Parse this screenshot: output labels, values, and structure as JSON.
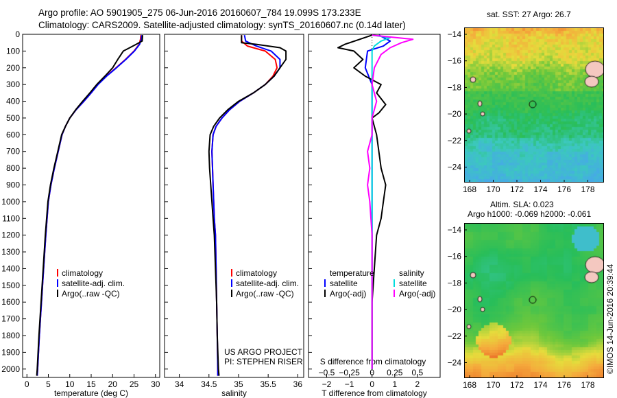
{
  "header": {
    "line1": "Argo profile: AO 5901905_275 06-Jun-2016 20160607_784 19.099S 173.233E",
    "line2": "Climatology: CARS2009. Satellite-adjusted climatology: synTS_20160607.nc (0.14d later)"
  },
  "colors": {
    "climatology": "#ff0000",
    "satellite": "#0000ff",
    "argo": "#000000",
    "sat_diff": "#00dddd",
    "argo_s_diff": "#ff00ff"
  },
  "chart_data": [
    {
      "type": "line",
      "name": "temperature",
      "xlabel": "temperature (deg C)",
      "ylabel": "",
      "xlim": [
        -1,
        31
      ],
      "ylim": [
        2050,
        0
      ],
      "y_inverted": true,
      "xticks": [
        0,
        5,
        10,
        15,
        20,
        25,
        30
      ],
      "yticks": [
        0,
        100,
        200,
        300,
        400,
        500,
        600,
        700,
        800,
        900,
        1000,
        1100,
        1200,
        1300,
        1400,
        1500,
        1600,
        1700,
        1800,
        1900,
        2000
      ],
      "legend": [
        "climatology",
        "satellite-adj. clim.",
        "Argo(..raw -QC)"
      ],
      "series": [
        {
          "name": "climatology",
          "color": "#ff0000",
          "points": [
            [
              26.6,
              5
            ],
            [
              26.5,
              30
            ],
            [
              26.2,
              60
            ],
            [
              25.0,
              100
            ],
            [
              23.0,
              150
            ],
            [
              20.8,
              200
            ],
            [
              18.5,
              250
            ],
            [
              16.5,
              300
            ],
            [
              15.0,
              350
            ],
            [
              13.3,
              400
            ],
            [
              11.5,
              450
            ],
            [
              10.0,
              500
            ],
            [
              9.0,
              550
            ],
            [
              8.2,
              600
            ],
            [
              7.3,
              700
            ],
            [
              6.4,
              800
            ],
            [
              5.6,
              900
            ],
            [
              5.0,
              1000
            ],
            [
              4.4,
              1200
            ],
            [
              3.9,
              1400
            ],
            [
              3.4,
              1600
            ],
            [
              2.9,
              1800
            ],
            [
              2.5,
              2000
            ],
            [
              2.4,
              2040
            ]
          ]
        },
        {
          "name": "satellite-adj. clim.",
          "color": "#0000ff",
          "points": [
            [
              26.8,
              5
            ],
            [
              26.7,
              30
            ],
            [
              26.3,
              60
            ],
            [
              25.1,
              100
            ],
            [
              23.1,
              150
            ],
            [
              20.9,
              200
            ],
            [
              18.6,
              250
            ],
            [
              16.6,
              300
            ],
            [
              15.0,
              350
            ],
            [
              13.3,
              400
            ],
            [
              11.5,
              450
            ],
            [
              10.0,
              500
            ],
            [
              9.0,
              550
            ],
            [
              8.2,
              600
            ],
            [
              7.3,
              700
            ],
            [
              6.4,
              800
            ],
            [
              5.6,
              900
            ],
            [
              5.0,
              1000
            ],
            [
              4.4,
              1200
            ],
            [
              3.9,
              1400
            ],
            [
              3.4,
              1600
            ],
            [
              2.9,
              1800
            ],
            [
              2.5,
              2000
            ],
            [
              2.4,
              2040
            ]
          ]
        },
        {
          "name": "Argo(..raw -QC)",
          "color": "#000000",
          "points": [
            [
              27.0,
              5
            ],
            [
              26.9,
              40
            ],
            [
              25.5,
              60
            ],
            [
              24.0,
              80
            ],
            [
              22.5,
              100
            ],
            [
              21.2,
              150
            ],
            [
              20.0,
              200
            ],
            [
              18.2,
              250
            ],
            [
              16.3,
              300
            ],
            [
              14.7,
              350
            ],
            [
              13.0,
              400
            ],
            [
              11.4,
              450
            ],
            [
              10.0,
              500
            ],
            [
              9.0,
              550
            ],
            [
              8.1,
              600
            ],
            [
              7.2,
              700
            ],
            [
              6.3,
              800
            ],
            [
              5.5,
              900
            ],
            [
              4.9,
              1000
            ],
            [
              4.3,
              1200
            ],
            [
              3.8,
              1400
            ],
            [
              3.3,
              1600
            ],
            [
              2.8,
              1800
            ],
            [
              2.4,
              2000
            ],
            [
              2.3,
              2040
            ]
          ]
        }
      ]
    },
    {
      "type": "line",
      "name": "salinity",
      "xlabel": "salinity",
      "ylabel": "",
      "xlim": [
        33.75,
        36.1
      ],
      "ylim": [
        2050,
        0
      ],
      "y_inverted": true,
      "xticks": [
        34,
        34.5,
        35,
        35.5,
        36
      ],
      "legend": [
        "climatology",
        "satellite-adj. clim.",
        "Argo(..raw -QC)"
      ],
      "annotation": [
        "US ARGO PROJECT",
        "PI: STEPHEN RISER"
      ],
      "series": [
        {
          "name": "climatology",
          "color": "#ff0000",
          "points": [
            [
              35.05,
              5
            ],
            [
              35.05,
              40
            ],
            [
              35.15,
              70
            ],
            [
              35.45,
              100
            ],
            [
              35.62,
              150
            ],
            [
              35.65,
              200
            ],
            [
              35.58,
              250
            ],
            [
              35.45,
              300
            ],
            [
              35.25,
              350
            ],
            [
              35.02,
              400
            ],
            [
              34.85,
              450
            ],
            [
              34.72,
              500
            ],
            [
              34.62,
              550
            ],
            [
              34.57,
              600
            ],
            [
              34.55,
              700
            ],
            [
              34.56,
              800
            ],
            [
              34.57,
              900
            ],
            [
              34.58,
              1000
            ],
            [
              34.59,
              1100
            ],
            [
              34.61,
              1200
            ],
            [
              34.62,
              1400
            ],
            [
              34.63,
              1600
            ],
            [
              34.64,
              1800
            ],
            [
              34.65,
              2000
            ],
            [
              34.65,
              2040
            ]
          ]
        },
        {
          "name": "satellite-adj. clim.",
          "color": "#0000ff",
          "points": [
            [
              35.1,
              5
            ],
            [
              35.12,
              40
            ],
            [
              35.3,
              70
            ],
            [
              35.55,
              100
            ],
            [
              35.7,
              150
            ],
            [
              35.7,
              200
            ],
            [
              35.6,
              250
            ],
            [
              35.45,
              300
            ],
            [
              35.25,
              350
            ],
            [
              35.02,
              400
            ],
            [
              34.85,
              450
            ],
            [
              34.72,
              500
            ],
            [
              34.62,
              550
            ],
            [
              34.57,
              600
            ],
            [
              34.55,
              700
            ],
            [
              34.56,
              800
            ],
            [
              34.57,
              900
            ],
            [
              34.58,
              1000
            ],
            [
              34.59,
              1100
            ],
            [
              34.61,
              1200
            ],
            [
              34.62,
              1400
            ],
            [
              34.63,
              1600
            ],
            [
              34.64,
              1800
            ],
            [
              34.65,
              2000
            ],
            [
              34.65,
              2040
            ]
          ]
        },
        {
          "name": "Argo(..raw -QC)",
          "color": "#000000",
          "points": [
            [
              35.05,
              5
            ],
            [
              35.05,
              50
            ],
            [
              35.3,
              60
            ],
            [
              35.7,
              80
            ],
            [
              35.8,
              100
            ],
            [
              35.8,
              150
            ],
            [
              35.7,
              200
            ],
            [
              35.6,
              250
            ],
            [
              35.45,
              300
            ],
            [
              35.25,
              350
            ],
            [
              35.0,
              400
            ],
            [
              34.82,
              450
            ],
            [
              34.68,
              500
            ],
            [
              34.58,
              550
            ],
            [
              34.52,
              600
            ],
            [
              34.5,
              700
            ],
            [
              34.51,
              800
            ],
            [
              34.53,
              900
            ],
            [
              34.55,
              1000
            ],
            [
              34.57,
              1100
            ],
            [
              34.59,
              1200
            ],
            [
              34.61,
              1400
            ],
            [
              34.63,
              1600
            ],
            [
              34.64,
              1800
            ],
            [
              34.66,
              2000
            ],
            [
              34.67,
              2040
            ]
          ]
        }
      ]
    },
    {
      "type": "line",
      "name": "differences",
      "xlabel": "T difference from climatology",
      "xlabel_top": "S difference from climatology",
      "xlim": [
        -2.8,
        3.0
      ],
      "ylim": [
        2050,
        0
      ],
      "y_inverted": true,
      "xticks": [
        -2,
        -1,
        0,
        1,
        2
      ],
      "xticks_top": [
        [
          "-0.5",
          -2
        ],
        [
          "-0.25",
          -1
        ],
        [
          "0",
          0
        ],
        [
          "0.25",
          1
        ],
        [
          "0.5",
          2
        ]
      ],
      "legend": {
        "temperature": [
          "temperature",
          "satellite",
          "Argo(-adj)"
        ],
        "salinity": [
          "salinity",
          "satellite",
          "Argo(-adj)"
        ]
      },
      "series": [
        {
          "name": "temperature satellite",
          "color": "#0000ff",
          "points": [
            [
              0.3,
              5
            ],
            [
              0.8,
              40
            ],
            [
              0.5,
              70
            ],
            [
              -0.2,
              100
            ],
            [
              -0.3,
              200
            ],
            [
              0.0,
              300
            ],
            [
              0.0,
              400
            ],
            [
              0.0,
              500
            ],
            [
              0.0,
              700
            ],
            [
              0.0,
              1000
            ],
            [
              0.0,
              1500
            ],
            [
              0.0,
              2000
            ]
          ]
        },
        {
          "name": "temperature Argo(-adj)",
          "color": "#000000",
          "points": [
            [
              0.0,
              5
            ],
            [
              -1.2,
              60
            ],
            [
              -1.5,
              80
            ],
            [
              -0.8,
              100
            ],
            [
              -0.4,
              150
            ],
            [
              -0.8,
              200
            ],
            [
              -0.3,
              250
            ],
            [
              0.4,
              300
            ],
            [
              0.2,
              350
            ],
            [
              0.6,
              420
            ],
            [
              0.3,
              470
            ],
            [
              0.0,
              500
            ],
            [
              0.2,
              600
            ],
            [
              0.3,
              700
            ],
            [
              0.4,
              800
            ],
            [
              0.6,
              900
            ],
            [
              0.5,
              1000
            ],
            [
              0.4,
              1100
            ],
            [
              0.2,
              1200
            ],
            [
              0.1,
              1400
            ],
            [
              0.0,
              1600
            ],
            [
              0.0,
              1800
            ],
            [
              0.0,
              2000
            ]
          ]
        },
        {
          "name": "salinity satellite",
          "color": "#00dddd",
          "points": [
            [
              0.0,
              5
            ],
            [
              0.8,
              20
            ],
            [
              0.4,
              40
            ],
            [
              0.1,
              70
            ],
            [
              0.0,
              100
            ],
            [
              0.0,
              300
            ],
            [
              0.0,
              500
            ],
            [
              0.0,
              1000
            ],
            [
              0.0,
              1500
            ],
            [
              0.0,
              2000
            ]
          ]
        },
        {
          "name": "salinity Argo(-adj)",
          "color": "#ff00ff",
          "points": [
            [
              0.0,
              5
            ],
            [
              1.8,
              30
            ],
            [
              1.3,
              50
            ],
            [
              0.8,
              80
            ],
            [
              0.4,
              120
            ],
            [
              0.1,
              200
            ],
            [
              0.0,
              300
            ],
            [
              0.2,
              400
            ],
            [
              0.0,
              500
            ],
            [
              0.0,
              600
            ],
            [
              -0.2,
              700
            ],
            [
              -0.1,
              800
            ],
            [
              -0.2,
              900
            ],
            [
              -0.1,
              1000
            ],
            [
              0.0,
              1200
            ],
            [
              0.0,
              1400
            ],
            [
              0.0,
              2000
            ]
          ]
        }
      ]
    }
  ],
  "maps": [
    {
      "name": "sst",
      "title": "sat. SST: 27 Argo: 26.7",
      "xticks": [
        "168",
        "170",
        "172",
        "174",
        "176",
        "178"
      ],
      "yticks": [
        "-14",
        "-16",
        "-18",
        "-20",
        "-22",
        "-24"
      ],
      "lon_range": [
        167.8,
        178.6
      ],
      "lat_range": [
        -13.5,
        -25.0
      ],
      "argo_position": [
        173.233,
        -19.099
      ]
    },
    {
      "name": "sla",
      "title": "Altim. SLA: 0.023",
      "subtitle": "Argo h1000: -0.069 h2000: -0.061",
      "xticks": [
        "168",
        "170",
        "172",
        "174",
        "176",
        "178"
      ],
      "yticks": [
        "-14",
        "-16",
        "-18",
        "-20",
        "-22",
        "-24"
      ],
      "lon_range": [
        167.8,
        178.6
      ],
      "lat_range": [
        -13.5,
        -25.0
      ],
      "argo_position": [
        173.233,
        -19.099
      ]
    }
  ],
  "stamp": "©IMOS 14-Jun-2016 20:39:44"
}
